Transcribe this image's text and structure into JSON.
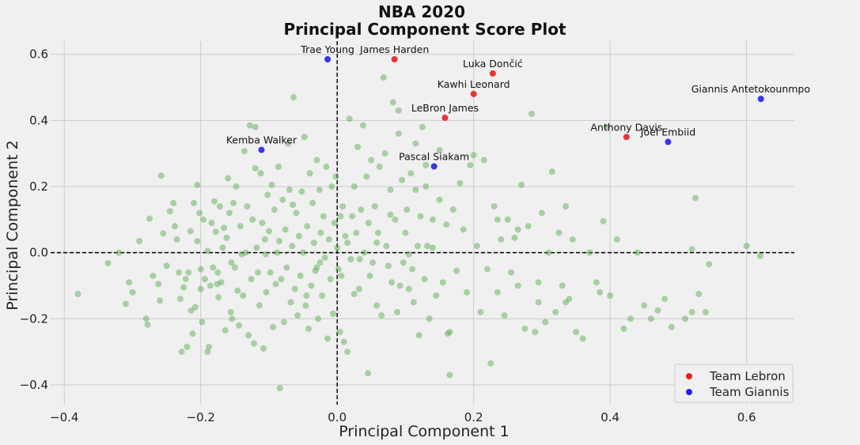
{
  "chart_data": {
    "type": "scatter",
    "title": "NBA 2020",
    "subtitle": "Principal Component Score Plot",
    "xlabel": "Principal Component 1",
    "ylabel": "Principal Component 2",
    "xlim": [
      -0.42,
      0.67
    ],
    "ylim": [
      -0.46,
      0.64
    ],
    "xticks": [
      -0.4,
      -0.2,
      0.0,
      0.2,
      0.4,
      0.6
    ],
    "xtick_labels": [
      "−0.4",
      "−0.2",
      "0.0",
      "0.2",
      "0.4",
      "0.6"
    ],
    "yticks": [
      -0.4,
      -0.2,
      0.0,
      0.2,
      0.4,
      0.6
    ],
    "ytick_labels": [
      "−0.4",
      "−0.2",
      "0.0",
      "0.2",
      "0.4",
      "0.6"
    ],
    "grid": true,
    "reference_lines": {
      "x": 0,
      "y": 0,
      "style": "dashed",
      "color": "#000000"
    },
    "legend": {
      "position": "bottom-right",
      "entries": [
        {
          "label": "Team Lebron",
          "color": "#e82020"
        },
        {
          "label": "Team Giannis",
          "color": "#2020e8"
        }
      ]
    },
    "colors": {
      "background": "#f0f0f0",
      "other_players": "#5fad56",
      "team_lebron": "#e82020",
      "team_giannis": "#2020e8"
    },
    "series": [
      {
        "name": "Team Lebron",
        "color": "#e82020",
        "points": [
          {
            "label": "James Harden",
            "x": 0.084,
            "y": 0.585
          },
          {
            "label": "Luka Dončić",
            "x": 0.228,
            "y": 0.542
          },
          {
            "label": "Kawhi Leonard",
            "x": 0.2,
            "y": 0.48
          },
          {
            "label": "LeBron James",
            "x": 0.158,
            "y": 0.408
          },
          {
            "label": "Anthony Davis",
            "x": 0.424,
            "y": 0.35
          }
        ]
      },
      {
        "name": "Team Giannis",
        "color": "#2020e8",
        "points": [
          {
            "label": "Trae Young",
            "x": -0.014,
            "y": 0.585
          },
          {
            "label": "Giannis Antetokounmpo",
            "x": 0.621,
            "y": 0.465
          },
          {
            "label": "Joel Embiid",
            "x": 0.485,
            "y": 0.335
          },
          {
            "label": "Kemba Walker",
            "x": -0.111,
            "y": 0.311
          },
          {
            "label": "Pascal Siakam",
            "x": 0.142,
            "y": 0.261
          }
        ]
      }
    ],
    "other_points": [
      [
        -0.38,
        -0.125
      ],
      [
        -0.336,
        -0.032
      ],
      [
        -0.31,
        -0.155
      ],
      [
        -0.305,
        -0.09
      ],
      [
        -0.3,
        -0.12
      ],
      [
        -0.29,
        0.035
      ],
      [
        -0.28,
        -0.2
      ],
      [
        -0.278,
        -0.218
      ],
      [
        -0.275,
        0.103
      ],
      [
        -0.27,
        -0.07
      ],
      [
        -0.262,
        -0.095
      ],
      [
        -0.258,
        0.233
      ],
      [
        -0.255,
        0.058
      ],
      [
        -0.25,
        -0.04
      ],
      [
        -0.245,
        0.125
      ],
      [
        -0.24,
        0.15
      ],
      [
        -0.238,
        0.08
      ],
      [
        -0.235,
        0.04
      ],
      [
        -0.232,
        -0.06
      ],
      [
        -0.23,
        -0.14
      ],
      [
        -0.228,
        -0.3
      ],
      [
        -0.225,
        -0.105
      ],
      [
        -0.222,
        -0.08
      ],
      [
        -0.22,
        -0.285
      ],
      [
        -0.218,
        -0.06
      ],
      [
        -0.214,
        -0.175
      ],
      [
        -0.212,
        -0.245
      ],
      [
        -0.21,
        0.15
      ],
      [
        -0.208,
        -0.165
      ],
      [
        -0.205,
        0.205
      ],
      [
        -0.205,
        0.035
      ],
      [
        -0.202,
        0.12
      ],
      [
        -0.2,
        -0.05
      ],
      [
        -0.198,
        -0.21
      ],
      [
        -0.196,
        0.1
      ],
      [
        -0.194,
        -0.08
      ],
      [
        -0.19,
        -0.3
      ],
      [
        -0.188,
        -0.285
      ],
      [
        -0.186,
        -0.1
      ],
      [
        -0.184,
        0.09
      ],
      [
        -0.182,
        -0.045
      ],
      [
        -0.18,
        0.155
      ],
      [
        -0.178,
        0.063
      ],
      [
        -0.176,
        -0.095
      ],
      [
        -0.174,
        -0.135
      ],
      [
        -0.172,
        0.14
      ],
      [
        -0.17,
        -0.09
      ],
      [
        -0.168,
        0.015
      ],
      [
        -0.166,
        0.075
      ],
      [
        -0.164,
        -0.235
      ],
      [
        -0.162,
        0.045
      ],
      [
        -0.16,
        0.225
      ],
      [
        -0.158,
        0.12
      ],
      [
        -0.156,
        -0.18
      ],
      [
        -0.154,
        -0.2
      ],
      [
        -0.152,
        0.15
      ],
      [
        -0.15,
        -0.045
      ],
      [
        -0.148,
        0.2
      ],
      [
        -0.146,
        -0.115
      ],
      [
        -0.144,
        -0.22
      ],
      [
        -0.142,
        0.08
      ],
      [
        -0.14,
        -0.005
      ],
      [
        -0.138,
        -0.13
      ],
      [
        -0.136,
        0.307
      ],
      [
        -0.134,
        0.0
      ],
      [
        -0.132,
        0.14
      ],
      [
        -0.13,
        -0.25
      ],
      [
        -0.128,
        0.385
      ],
      [
        -0.126,
        -0.08
      ],
      [
        -0.124,
        0.1
      ],
      [
        -0.122,
        -0.275
      ],
      [
        -0.12,
        0.38
      ],
      [
        -0.118,
        0.015
      ],
      [
        -0.116,
        -0.06
      ],
      [
        -0.114,
        -0.16
      ],
      [
        -0.112,
        0.24
      ],
      [
        -0.11,
        0.09
      ],
      [
        -0.108,
        -0.29
      ],
      [
        -0.106,
        0.04
      ],
      [
        -0.104,
        -0.12
      ],
      [
        -0.102,
        0.175
      ],
      [
        -0.1,
        0.065
      ],
      [
        -0.098,
        -0.06
      ],
      [
        -0.096,
        0.205
      ],
      [
        -0.094,
        -0.225
      ],
      [
        -0.092,
        0.13
      ],
      [
        -0.09,
        -0.095
      ],
      [
        -0.088,
        0.0
      ],
      [
        -0.086,
        0.26
      ],
      [
        -0.084,
        -0.41
      ],
      [
        -0.082,
        -0.08
      ],
      [
        -0.08,
        0.16
      ],
      [
        -0.078,
        -0.21
      ],
      [
        -0.076,
        0.07
      ],
      [
        -0.074,
        -0.045
      ],
      [
        -0.072,
        0.33
      ],
      [
        -0.07,
        0.19
      ],
      [
        -0.068,
        -0.15
      ],
      [
        -0.066,
        0.02
      ],
      [
        -0.064,
        0.47
      ],
      [
        -0.062,
        -0.11
      ],
      [
        -0.06,
        0.12
      ],
      [
        -0.058,
        -0.19
      ],
      [
        -0.056,
        0.05
      ],
      [
        -0.054,
        -0.07
      ],
      [
        -0.052,
        0.185
      ],
      [
        -0.05,
        0.0
      ],
      [
        -0.048,
        0.35
      ],
      [
        -0.046,
        -0.16
      ],
      [
        -0.044,
        0.08
      ],
      [
        -0.042,
        -0.23
      ],
      [
        -0.04,
        0.24
      ],
      [
        -0.038,
        -0.1
      ],
      [
        -0.036,
        0.15
      ],
      [
        -0.034,
        0.03
      ],
      [
        -0.032,
        -0.055
      ],
      [
        -0.03,
        0.28
      ],
      [
        -0.028,
        -0.2
      ],
      [
        -0.026,
        0.19
      ],
      [
        -0.024,
        0.06
      ],
      [
        -0.022,
        -0.13
      ],
      [
        -0.02,
        0.11
      ],
      [
        -0.018,
        -0.015
      ],
      [
        -0.016,
        0.26
      ],
      [
        -0.014,
        -0.26
      ],
      [
        -0.012,
        0.04
      ],
      [
        -0.01,
        -0.08
      ],
      [
        -0.008,
        0.2
      ],
      [
        -0.006,
        -0.185
      ],
      [
        -0.004,
        0.09
      ],
      [
        -0.002,
        0.23
      ],
      [
        0.002,
        -0.05
      ],
      [
        0.004,
        -0.24
      ],
      [
        0.006,
        -0.07
      ],
      [
        0.008,
        0.14
      ],
      [
        0.01,
        -0.27
      ],
      [
        0.012,
        0.05
      ],
      [
        0.015,
        -0.3
      ],
      [
        0.018,
        0.405
      ],
      [
        0.02,
        -0.02
      ],
      [
        0.022,
        0.11
      ],
      [
        0.025,
        0.2
      ],
      [
        0.028,
        0.06
      ],
      [
        0.03,
        0.32
      ],
      [
        0.032,
        -0.11
      ],
      [
        0.035,
        0.13
      ],
      [
        0.038,
        0.385
      ],
      [
        0.04,
        0.0
      ],
      [
        0.043,
        0.23
      ],
      [
        0.046,
        0.09
      ],
      [
        0.048,
        -0.07
      ],
      [
        0.05,
        0.28
      ],
      [
        0.052,
        -0.03
      ],
      [
        0.055,
        0.14
      ],
      [
        0.058,
        -0.16
      ],
      [
        0.06,
        0.06
      ],
      [
        0.062,
        0.26
      ],
      [
        0.065,
        -0.19
      ],
      [
        0.068,
        0.53
      ],
      [
        0.07,
        0.3
      ],
      [
        0.072,
        0.02
      ],
      [
        0.075,
        -0.04
      ],
      [
        0.078,
        0.19
      ],
      [
        0.08,
        -0.09
      ],
      [
        0.082,
        0.455
      ],
      [
        0.085,
        0.1
      ],
      [
        0.088,
        -0.18
      ],
      [
        0.09,
        0.43
      ],
      [
        0.092,
        -0.1
      ],
      [
        0.095,
        0.22
      ],
      [
        0.097,
        -0.03
      ],
      [
        0.1,
        0.06
      ],
      [
        0.102,
        0.13
      ],
      [
        0.105,
        -0.11
      ],
      [
        0.108,
        0.24
      ],
      [
        0.11,
        -0.05
      ],
      [
        0.112,
        -0.15
      ],
      [
        0.115,
        0.33
      ],
      [
        0.118,
        0.02
      ],
      [
        0.12,
        -0.25
      ],
      [
        0.122,
        0.11
      ],
      [
        0.125,
        0.38
      ],
      [
        0.128,
        -0.08
      ],
      [
        0.13,
        0.2
      ],
      [
        0.132,
        0.02
      ],
      [
        0.135,
        -0.2
      ],
      [
        0.14,
        0.1
      ],
      [
        0.145,
        -0.13
      ],
      [
        0.15,
        0.16
      ],
      [
        0.155,
        -0.09
      ],
      [
        0.16,
        0.085
      ],
      [
        0.162,
        -0.245
      ],
      [
        0.165,
        -0.37
      ],
      [
        0.17,
        0.13
      ],
      [
        0.175,
        -0.055
      ],
      [
        0.18,
        0.21
      ],
      [
        0.185,
        0.07
      ],
      [
        0.19,
        -0.12
      ],
      [
        0.2,
        0.295
      ],
      [
        0.205,
        0.02
      ],
      [
        0.21,
        -0.18
      ],
      [
        0.215,
        0.28
      ],
      [
        0.22,
        -0.05
      ],
      [
        0.225,
        -0.335
      ],
      [
        0.23,
        0.14
      ],
      [
        0.235,
        -0.12
      ],
      [
        0.24,
        0.04
      ],
      [
        0.245,
        -0.19
      ],
      [
        0.25,
        0.1
      ],
      [
        0.255,
        -0.06
      ],
      [
        0.26,
        0.045
      ],
      [
        0.265,
        -0.1
      ],
      [
        0.27,
        0.205
      ],
      [
        0.275,
        -0.23
      ],
      [
        0.28,
        0.08
      ],
      [
        0.285,
        0.42
      ],
      [
        0.29,
        -0.24
      ],
      [
        0.295,
        -0.15
      ],
      [
        0.3,
        0.12
      ],
      [
        0.305,
        -0.21
      ],
      [
        0.31,
        0.0
      ],
      [
        0.315,
        0.245
      ],
      [
        0.32,
        -0.18
      ],
      [
        0.325,
        0.06
      ],
      [
        0.33,
        -0.1
      ],
      [
        0.335,
        0.14
      ],
      [
        0.34,
        -0.14
      ],
      [
        0.345,
        0.04
      ],
      [
        0.35,
        -0.24
      ],
      [
        0.36,
        -0.26
      ],
      [
        0.37,
        0.0
      ],
      [
        0.38,
        -0.09
      ],
      [
        0.385,
        -0.12
      ],
      [
        0.39,
        0.095
      ],
      [
        0.395,
        0.38
      ],
      [
        0.4,
        -0.13
      ],
      [
        0.41,
        0.04
      ],
      [
        0.42,
        -0.23
      ],
      [
        0.43,
        -0.2
      ],
      [
        0.44,
        0.0
      ],
      [
        0.45,
        -0.16
      ],
      [
        0.46,
        -0.2
      ],
      [
        0.47,
        -0.175
      ],
      [
        0.48,
        -0.14
      ],
      [
        0.49,
        -0.225
      ],
      [
        0.51,
        -0.2
      ],
      [
        0.52,
        0.01
      ],
      [
        0.525,
        0.165
      ],
      [
        0.53,
        -0.125
      ],
      [
        0.54,
        -0.18
      ],
      [
        0.545,
        -0.035
      ],
      [
        0.6,
        0.02
      ],
      [
        0.62,
        -0.01
      ],
      [
        -0.26,
        -0.145
      ],
      [
        -0.215,
        0.065
      ],
      [
        -0.19,
        0.005
      ],
      [
        -0.155,
        -0.03
      ],
      [
        -0.12,
        0.255
      ],
      [
        -0.085,
        0.035
      ],
      [
        -0.045,
        -0.13
      ],
      [
        -0.03,
        -0.045
      ],
      [
        0.0,
        0.015
      ],
      [
        0.015,
        0.03
      ],
      [
        0.033,
        -0.02
      ],
      [
        0.058,
        0.03
      ],
      [
        0.078,
        0.115
      ],
      [
        0.115,
        0.19
      ],
      [
        0.14,
        0.015
      ],
      [
        0.165,
        -0.24
      ],
      [
        0.195,
        0.265
      ],
      [
        0.235,
        0.1
      ],
      [
        0.265,
        0.07
      ],
      [
        0.295,
        -0.09
      ],
      [
        0.335,
        -0.15
      ],
      [
        0.52,
        -0.18
      ],
      [
        -0.32,
        0.0
      ],
      [
        -0.2,
        -0.11
      ],
      [
        -0.175,
        -0.06
      ],
      [
        -0.105,
        -0.005
      ],
      [
        -0.065,
        0.145
      ],
      [
        -0.025,
        -0.03
      ],
      [
        0.005,
        0.11
      ],
      [
        0.025,
        -0.125
      ],
      [
        0.045,
        -0.365
      ],
      [
        0.09,
        0.36
      ],
      [
        0.105,
        -0.005
      ],
      [
        0.13,
        0.265
      ],
      [
        0.15,
        0.31
      ]
    ]
  }
}
